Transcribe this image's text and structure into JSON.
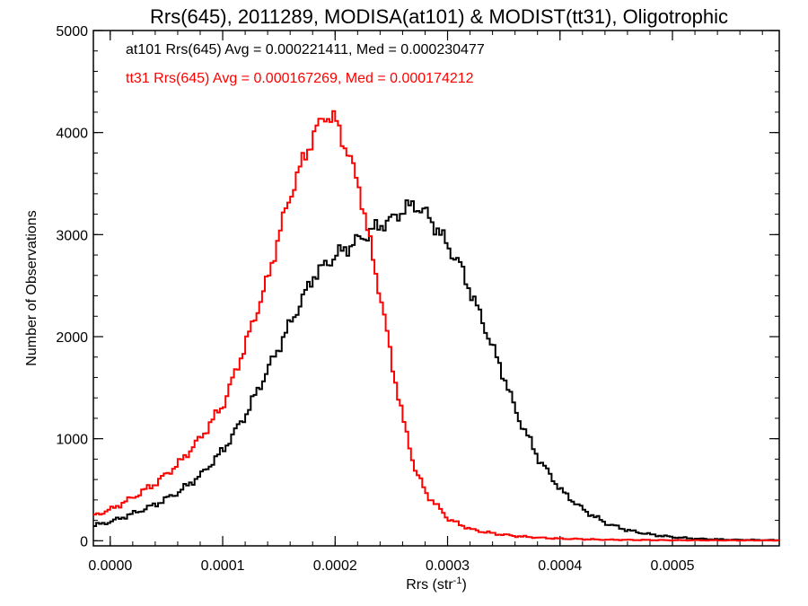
{
  "chart_data": {
    "type": "line",
    "title": "Rrs(645), 2011289, MODISA(at101) & MODIST(tt31), Oligotrophic",
    "xlabel": "Rrs (str",
    "xlabel_sup": "-1",
    "xlabel_close": ")",
    "ylabel": "Number of Observations",
    "xlim": [
      -1.5e-05,
      0.000595
    ],
    "ylim": [
      -50,
      5000
    ],
    "xticks": [
      0.0,
      0.0001,
      0.0002,
      0.0003,
      0.0004,
      0.0005
    ],
    "xtick_labels": [
      "0.0000",
      "0.0001",
      "0.0002",
      "0.0003",
      "0.0004",
      "0.0005"
    ],
    "yticks": [
      0,
      1000,
      2000,
      3000,
      4000,
      5000
    ],
    "ytick_labels": [
      "0",
      "1000",
      "2000",
      "3000",
      "4000",
      "5000"
    ],
    "grid": false,
    "series": [
      {
        "name": "at101",
        "color": "#000000",
        "annotation": "at101 Rrs(645) Avg = 0.000221411, Med = 0.000230477",
        "x": [
          -1.5e-05,
          0.0,
          2e-05,
          4e-05,
          6e-05,
          8e-05,
          0.0001,
          0.00012,
          0.00014,
          0.00016,
          0.00018,
          0.0002,
          0.00022,
          0.00024,
          0.00025,
          0.00026,
          0.00027,
          0.00028,
          0.00029,
          0.0003,
          0.00031,
          0.00032,
          0.00033,
          0.00034,
          0.00035,
          0.00036,
          0.00038,
          0.0004,
          0.00042,
          0.00044,
          0.00046,
          0.00048,
          0.0005,
          0.00052,
          0.00055,
          0.000595
        ],
        "y": [
          150,
          190,
          270,
          360,
          480,
          650,
          900,
          1250,
          1700,
          2150,
          2600,
          2800,
          2950,
          3100,
          3150,
          3250,
          3290,
          3200,
          3050,
          2870,
          2700,
          2420,
          2150,
          1860,
          1580,
          1250,
          800,
          490,
          300,
          170,
          100,
          60,
          35,
          20,
          10,
          5
        ]
      },
      {
        "name": "tt31",
        "color": "#ff0000",
        "annotation": "tt31 Rrs(645) Avg = 0.000167269, Med = 0.000174212",
        "x": [
          -1.5e-05,
          0.0,
          2e-05,
          4e-05,
          6e-05,
          8e-05,
          0.0001,
          0.00012,
          0.00014,
          0.00015,
          0.00016,
          0.00017,
          0.00018,
          0.00019,
          0.0002,
          0.00021,
          0.00022,
          0.00023,
          0.00024,
          0.00025,
          0.00026,
          0.00027,
          0.00028,
          0.0003,
          0.00032,
          0.00034,
          0.00036,
          0.00038,
          0.0004,
          0.00044,
          0.0005,
          0.000595
        ],
        "y": [
          250,
          310,
          430,
          570,
          760,
          1020,
          1350,
          1950,
          2600,
          3050,
          3420,
          3720,
          3980,
          4180,
          4100,
          3800,
          3480,
          2900,
          2350,
          1700,
          1150,
          700,
          460,
          210,
          110,
          70,
          45,
          30,
          20,
          10,
          5,
          3
        ]
      }
    ]
  }
}
